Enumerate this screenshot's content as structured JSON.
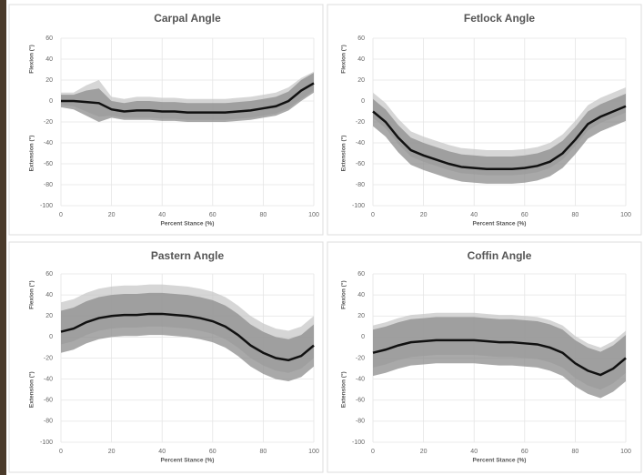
{
  "chart_data": [
    {
      "type": "band-line",
      "title": "Carpal Angle",
      "x_label": "Percent Stance (%)",
      "y_label_top": "Flexion (°)",
      "y_label_bottom": "Extension (°)",
      "xlim": [
        0,
        100
      ],
      "xticks": [
        0,
        20,
        40,
        60,
        80,
        100
      ],
      "ylim": [
        -100,
        60
      ],
      "yticks": [
        -100,
        -80,
        -60,
        -40,
        -20,
        0,
        20,
        40,
        60
      ],
      "grid": true,
      "x": [
        0,
        5,
        10,
        15,
        20,
        25,
        30,
        35,
        40,
        45,
        50,
        55,
        60,
        65,
        70,
        75,
        80,
        85,
        90,
        95,
        100
      ],
      "bands": [
        {
          "color": "#c8c8c8",
          "upper": [
            8,
            8,
            15,
            20,
            4,
            2,
            4,
            4,
            3,
            3,
            2,
            2,
            2,
            2,
            3,
            4,
            6,
            8,
            13,
            22,
            28
          ],
          "lower": [
            -4,
            -5,
            -10,
            -15,
            -14,
            -16,
            -16,
            -16,
            -17,
            -17,
            -18,
            -18,
            -18,
            -18,
            -17,
            -16,
            -14,
            -12,
            -7,
            2,
            10
          ]
        },
        {
          "color": "#8c8c8c",
          "upper": [
            6,
            6,
            10,
            12,
            0,
            -2,
            0,
            0,
            -1,
            -1,
            -2,
            -2,
            -2,
            -2,
            -1,
            0,
            2,
            4,
            9,
            20,
            27
          ],
          "lower": [
            -6,
            -8,
            -14,
            -20,
            -16,
            -18,
            -18,
            -18,
            -19,
            -19,
            -20,
            -20,
            -20,
            -20,
            -19,
            -18,
            -16,
            -14,
            -9,
            0,
            8
          ]
        }
      ],
      "line": {
        "color": "#111111",
        "values": [
          0,
          0,
          -1,
          -2,
          -8,
          -10,
          -9,
          -9,
          -10,
          -10,
          -11,
          -11,
          -11,
          -11,
          -10,
          -9,
          -7,
          -5,
          0,
          10,
          17
        ]
      }
    },
    {
      "type": "band-line",
      "title": "Fetlock Angle",
      "x_label": "Percent Stance (%)",
      "y_label_top": "Flexion (°)",
      "y_label_bottom": "Extension (°)",
      "xlim": [
        0,
        100
      ],
      "xticks": [
        0,
        20,
        40,
        60,
        80,
        100
      ],
      "ylim": [
        -100,
        60
      ],
      "yticks": [
        -100,
        -80,
        -60,
        -40,
        -20,
        0,
        20,
        40,
        60
      ],
      "grid": true,
      "x": [
        0,
        5,
        10,
        15,
        20,
        25,
        30,
        35,
        40,
        45,
        50,
        55,
        60,
        65,
        70,
        75,
        80,
        85,
        90,
        95,
        100
      ],
      "bands": [
        {
          "color": "#c8c8c8",
          "upper": [
            8,
            -2,
            -17,
            -29,
            -34,
            -38,
            -42,
            -45,
            -46,
            -47,
            -47,
            -47,
            -46,
            -44,
            -40,
            -32,
            -19,
            -4,
            3,
            8,
            13
          ],
          "lower": [
            -16,
            -26,
            -41,
            -53,
            -58,
            -62,
            -66,
            -69,
            -70,
            -71,
            -71,
            -71,
            -70,
            -68,
            -64,
            -56,
            -43,
            -28,
            -21,
            -16,
            -11
          ]
        },
        {
          "color": "#8c8c8c",
          "upper": [
            2,
            -8,
            -23,
            -35,
            -40,
            -44,
            -48,
            -51,
            -52,
            -53,
            -53,
            -53,
            -52,
            -50,
            -46,
            -38,
            -25,
            -10,
            -3,
            2,
            7
          ],
          "lower": [
            -24,
            -34,
            -49,
            -61,
            -66,
            -70,
            -74,
            -77,
            -78,
            -79,
            -79,
            -79,
            -78,
            -76,
            -72,
            -64,
            -51,
            -36,
            -29,
            -24,
            -19
          ]
        }
      ],
      "line": {
        "color": "#111111",
        "values": [
          -10,
          -20,
          -35,
          -47,
          -52,
          -56,
          -60,
          -63,
          -64,
          -65,
          -65,
          -65,
          -64,
          -62,
          -58,
          -50,
          -37,
          -22,
          -15,
          -10,
          -5
        ]
      }
    },
    {
      "type": "band-line",
      "title": "Pastern Angle",
      "x_label": "Percent Stance (%)",
      "y_label_top": "Flexion (°)",
      "y_label_bottom": "Extension (°)",
      "xlim": [
        0,
        100
      ],
      "xticks": [
        0,
        20,
        40,
        60,
        80,
        100
      ],
      "ylim": [
        -100,
        60
      ],
      "yticks": [
        -100,
        -80,
        -60,
        -40,
        -20,
        0,
        20,
        40,
        60
      ],
      "grid": true,
      "x": [
        0,
        5,
        10,
        15,
        20,
        25,
        30,
        35,
        40,
        45,
        50,
        55,
        60,
        65,
        70,
        75,
        80,
        85,
        90,
        95,
        100
      ],
      "bands": [
        {
          "color": "#c8c8c8",
          "upper": [
            33,
            36,
            42,
            46,
            48,
            49,
            49,
            50,
            50,
            49,
            48,
            46,
            43,
            38,
            30,
            20,
            13,
            8,
            6,
            10,
            20
          ],
          "lower": [
            -7,
            -4,
            2,
            6,
            8,
            9,
            9,
            10,
            10,
            9,
            8,
            6,
            3,
            -2,
            -10,
            -20,
            -27,
            -32,
            -34,
            -30,
            -20
          ]
        },
        {
          "color": "#8c8c8c",
          "upper": [
            25,
            28,
            34,
            38,
            40,
            41,
            41,
            42,
            42,
            41,
            40,
            38,
            35,
            30,
            22,
            12,
            5,
            0,
            -2,
            2,
            12
          ],
          "lower": [
            -15,
            -12,
            -6,
            -2,
            0,
            1,
            1,
            2,
            2,
            1,
            0,
            -2,
            -5,
            -10,
            -18,
            -28,
            -35,
            -40,
            -42,
            -38,
            -28
          ]
        }
      ],
      "line": {
        "color": "#111111",
        "values": [
          5,
          8,
          14,
          18,
          20,
          21,
          21,
          22,
          22,
          21,
          20,
          18,
          15,
          10,
          2,
          -8,
          -15,
          -20,
          -22,
          -18,
          -8
        ]
      }
    },
    {
      "type": "band-line",
      "title": "Coffin Angle",
      "x_label": "Percent Stance (%)",
      "y_label_top": "Flexion (°)",
      "y_label_bottom": "Extension (°)",
      "xlim": [
        0,
        100
      ],
      "xticks": [
        0,
        20,
        40,
        60,
        80,
        100
      ],
      "ylim": [
        -100,
        60
      ],
      "yticks": [
        -100,
        -80,
        -60,
        -40,
        -20,
        0,
        20,
        40,
        60
      ],
      "grid": true,
      "x": [
        0,
        5,
        10,
        15,
        20,
        25,
        30,
        35,
        40,
        45,
        50,
        55,
        60,
        65,
        70,
        75,
        80,
        85,
        90,
        95,
        100
      ],
      "bands": [
        {
          "color": "#c8c8c8",
          "upper": [
            11,
            14,
            18,
            21,
            22,
            23,
            23,
            23,
            23,
            22,
            21,
            21,
            20,
            19,
            16,
            11,
            1,
            -6,
            -10,
            -4,
            6
          ],
          "lower": [
            -29,
            -26,
            -22,
            -19,
            -18,
            -17,
            -17,
            -17,
            -17,
            -18,
            -19,
            -19,
            -20,
            -21,
            -24,
            -29,
            -39,
            -46,
            -50,
            -44,
            -34
          ]
        },
        {
          "color": "#8c8c8c",
          "upper": [
            7,
            10,
            14,
            17,
            18,
            19,
            19,
            19,
            19,
            18,
            17,
            17,
            16,
            15,
            12,
            7,
            -3,
            -10,
            -14,
            -8,
            2
          ],
          "lower": [
            -37,
            -34,
            -30,
            -27,
            -26,
            -25,
            -25,
            -25,
            -25,
            -26,
            -27,
            -27,
            -28,
            -29,
            -32,
            -37,
            -47,
            -54,
            -58,
            -52,
            -42
          ]
        }
      ],
      "line": {
        "color": "#111111",
        "values": [
          -15,
          -12,
          -8,
          -5,
          -4,
          -3,
          -3,
          -3,
          -3,
          -4,
          -5,
          -5,
          -6,
          -7,
          -10,
          -15,
          -25,
          -32,
          -36,
          -30,
          -20
        ]
      }
    }
  ]
}
